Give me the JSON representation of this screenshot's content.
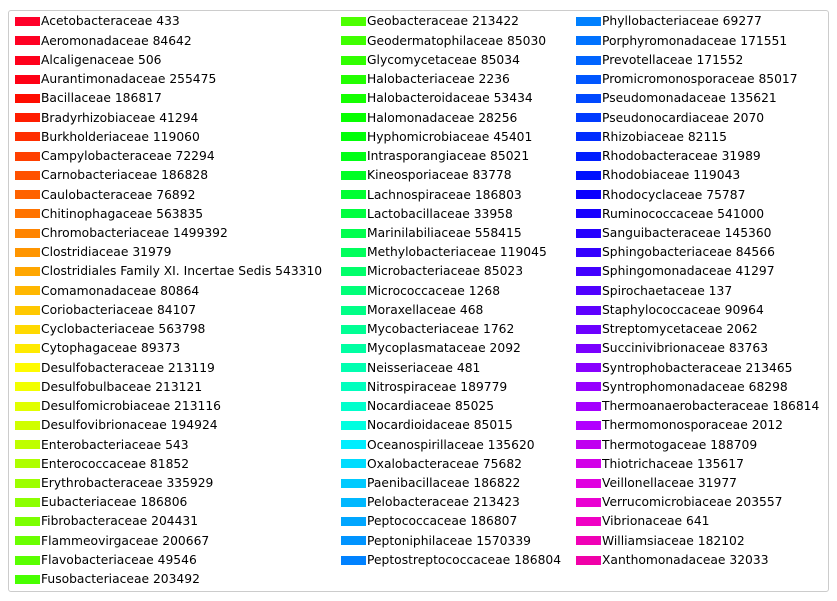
{
  "chart_data": {
    "type": "legend",
    "legend_placement": "full-figure",
    "columns": [
      [
        {
          "label": "Acetobacteraceae 433",
          "color": "#ff0029"
        },
        {
          "label": "Aeromonadaceae 84642",
          "color": "#ff0022"
        },
        {
          "label": "Alcaligenaceae 506",
          "color": "#ff001b"
        },
        {
          "label": "Aurantimonadaceae 255475",
          "color": "#ff0014"
        },
        {
          "label": "Bacillaceae 186817",
          "color": "#ff0c00"
        },
        {
          "label": "Bradyrhizobiaceae 41294",
          "color": "#ff1d00"
        },
        {
          "label": "Burkholderiaceae 119060",
          "color": "#ff2e00"
        },
        {
          "label": "Campylobacteraceae 72294",
          "color": "#ff4000"
        },
        {
          "label": "Carnobacteriaceae 186828",
          "color": "#ff5100"
        },
        {
          "label": "Caulobacteraceae 76892",
          "color": "#ff6200"
        },
        {
          "label": "Chitinophagaceae 563835",
          "color": "#ff7300"
        },
        {
          "label": "Chromobacteriaceae 1499392",
          "color": "#ff8400"
        },
        {
          "label": "Clostridiaceae 31979",
          "color": "#ff9500"
        },
        {
          "label": "Clostridiales Family XI. Incertae Sedis 543310",
          "color": "#ffa600"
        },
        {
          "label": "Comamonadaceae 80864",
          "color": "#ffb700"
        },
        {
          "label": "Coriobacteriaceae 84107",
          "color": "#ffc800"
        },
        {
          "label": "Cyclobacteriaceae 563798",
          "color": "#ffd900"
        },
        {
          "label": "Cytophagaceae 89373",
          "color": "#ffea00"
        },
        {
          "label": "Desulfobacteraceae 213119",
          "color": "#fffb00"
        },
        {
          "label": "Desulfobulbaceae 213121",
          "color": "#f2ff00"
        },
        {
          "label": "Desulfomicrobiaceae 213116",
          "color": "#e1ff00"
        },
        {
          "label": "Desulfovibrionaceae 194924",
          "color": "#d0ff00"
        },
        {
          "label": "Enterobacteriaceae 543",
          "color": "#bfff00"
        },
        {
          "label": "Enterococcaceae 81852",
          "color": "#aeff00"
        },
        {
          "label": "Erythrobacteraceae 335929",
          "color": "#9dff00"
        },
        {
          "label": "Eubacteriaceae 186806",
          "color": "#8cff00"
        },
        {
          "label": "Fibrobacteraceae 204431",
          "color": "#7bff00"
        },
        {
          "label": "Flammeovirgaceae 200667",
          "color": "#6aff00"
        },
        {
          "label": "Flavobacteriaceae 49546",
          "color": "#59ff00"
        },
        {
          "label": "Fusobacteriaceae 203492",
          "color": "#48ff00"
        }
      ],
      [
        {
          "label": "Geobacteraceae 213422",
          "color": "#4cff00"
        },
        {
          "label": "Geodermatophilaceae 85030",
          "color": "#3eff00"
        },
        {
          "label": "Glycomycetaceae 85034",
          "color": "#30ff00"
        },
        {
          "label": "Halobacteriaceae 2236",
          "color": "#22ff00"
        },
        {
          "label": "Halobacteroidaceae 53434",
          "color": "#14ff00"
        },
        {
          "label": "Halomonadaceae 28256",
          "color": "#06ff00"
        },
        {
          "label": "Hyphomicrobiaceae 45401",
          "color": "#00ff08"
        },
        {
          "label": "Intrasporangiaceae 85021",
          "color": "#00ff16"
        },
        {
          "label": "Kineosporiaceae 83778",
          "color": "#00ff24"
        },
        {
          "label": "Lachnospiraceae 186803",
          "color": "#00ff32"
        },
        {
          "label": "Lactobacillaceae 33958",
          "color": "#00ff40"
        },
        {
          "label": "Marinilabiliaceae 558415",
          "color": "#00ff4e"
        },
        {
          "label": "Methylobacteriaceae 119045",
          "color": "#00ff5c"
        },
        {
          "label": "Microbacteriaceae 85023",
          "color": "#00ff6a"
        },
        {
          "label": "Micrococcaceae 1268",
          "color": "#00ff78"
        },
        {
          "label": "Moraxellaceae 468",
          "color": "#00ff86"
        },
        {
          "label": "Mycobacteriaceae 1762",
          "color": "#00ff94"
        },
        {
          "label": "Mycoplasmataceae 2092",
          "color": "#00ffa2"
        },
        {
          "label": "Neisseriaceae 481",
          "color": "#00ffb0"
        },
        {
          "label": "Nitrospiraceae 189779",
          "color": "#00ffbe"
        },
        {
          "label": "Nocardiaceae 85025",
          "color": "#00ffcc"
        },
        {
          "label": "Nocardioidaceae 85015",
          "color": "#00ffe0"
        },
        {
          "label": "Oceanospirillaceae 135620",
          "color": "#00eeff"
        },
        {
          "label": "Oxalobacteraceae 75682",
          "color": "#00dcff"
        },
        {
          "label": "Paenibacillaceae 186822",
          "color": "#00caff"
        },
        {
          "label": "Pelobacteraceae 213423",
          "color": "#00b8ff"
        },
        {
          "label": "Peptococcaceae 186807",
          "color": "#00a6ff"
        },
        {
          "label": "Peptoniphilaceae 1570339",
          "color": "#0094ff"
        },
        {
          "label": "Peptostreptococcaceae 186804",
          "color": "#0082ff"
        }
      ],
      [
        {
          "label": "Phyllobacteriaceae 69277",
          "color": "#0080ff"
        },
        {
          "label": "Porphyromonadaceae 171551",
          "color": "#0072ff"
        },
        {
          "label": "Prevotellaceae 171552",
          "color": "#0064ff"
        },
        {
          "label": "Promicromonosporaceae 85017",
          "color": "#0056ff"
        },
        {
          "label": "Pseudomonadaceae 135621",
          "color": "#0048ff"
        },
        {
          "label": "Pseudonocardiaceae 2070",
          "color": "#003aff"
        },
        {
          "label": "Rhizobiaceae 82115",
          "color": "#002cff"
        },
        {
          "label": "Rhodobacteraceae 31989",
          "color": "#001eff"
        },
        {
          "label": "Rhodobiaceae 119043",
          "color": "#0010ff"
        },
        {
          "label": "Rhodocyclaceae 75787",
          "color": "#0a00ff"
        },
        {
          "label": "Ruminococcaceae 541000",
          "color": "#1800ff"
        },
        {
          "label": "Sanguibacteraceae 145360",
          "color": "#2600ff"
        },
        {
          "label": "Sphingobacteriaceae 84566",
          "color": "#3400ff"
        },
        {
          "label": "Sphingomonadaceae 41297",
          "color": "#4200ff"
        },
        {
          "label": "Spirochaetaceae 137",
          "color": "#5000ff"
        },
        {
          "label": "Staphylococcaceae 90964",
          "color": "#5e00ff"
        },
        {
          "label": "Streptomycetaceae 2062",
          "color": "#6c00ff"
        },
        {
          "label": "Succinivibrionaceae 83763",
          "color": "#7a00ff"
        },
        {
          "label": "Syntrophobacteraceae 213465",
          "color": "#8800ff"
        },
        {
          "label": "Syntrophomonadaceae 68298",
          "color": "#9600ff"
        },
        {
          "label": "Thermoanaerobacteraceae 186814",
          "color": "#a400ff"
        },
        {
          "label": "Thermomonosporaceae 2012",
          "color": "#b200ff"
        },
        {
          "label": "Thermotogaceae 188709",
          "color": "#c000f0"
        },
        {
          "label": "Thiotrichaceae 135617",
          "color": "#d200e8"
        },
        {
          "label": "Veillonellaceae 31977",
          "color": "#e000e0"
        },
        {
          "label": "Verrucomicrobiaceae 203557",
          "color": "#ea00d2"
        },
        {
          "label": "Vibrionaceae 641",
          "color": "#f000c4"
        },
        {
          "label": "Williamsiaceae 182102",
          "color": "#f000b6"
        },
        {
          "label": "Xanthomonadaceae 32033",
          "color": "#f000a8"
        }
      ]
    ]
  }
}
